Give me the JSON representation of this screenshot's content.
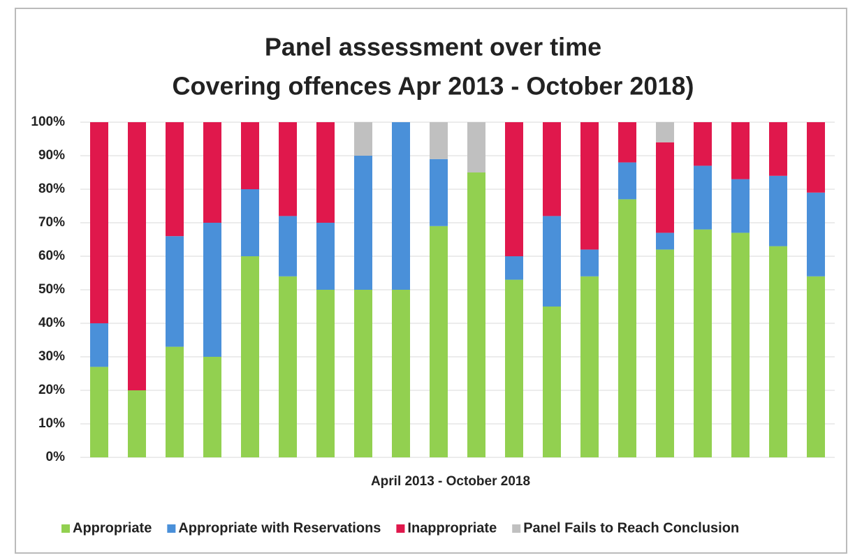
{
  "chart_data": {
    "type": "stacked_bar",
    "title": "Panel assessment over time",
    "subtitle": "Covering offences Apr 2013 - October 2018)",
    "x_label": "April 2013 - October 2018",
    "categories": [
      null,
      null,
      null,
      null,
      null,
      null,
      null,
      null,
      null,
      null,
      null,
      null,
      null,
      null,
      null,
      null,
      null,
      null,
      null,
      null
    ],
    "series": [
      {
        "name": "Appropriate",
        "color": "#92d050",
        "values": [
          27,
          20,
          33,
          30,
          60,
          54,
          50,
          50,
          50,
          69,
          85,
          53,
          45,
          54,
          77,
          62,
          68,
          67,
          63,
          54
        ]
      },
      {
        "name": "Appropriate with Reservations",
        "color": "#4a90d9",
        "values": [
          13,
          0,
          33,
          40,
          20,
          18,
          20,
          40,
          50,
          20,
          0,
          7,
          27,
          8,
          11,
          5,
          19,
          16,
          21,
          25
        ]
      },
      {
        "name": "Inappropriate",
        "color": "#e0184c",
        "values": [
          60,
          80,
          34,
          30,
          20,
          28,
          30,
          0,
          0,
          0,
          0,
          40,
          28,
          38,
          12,
          27,
          13,
          17,
          16,
          21
        ]
      },
      {
        "name": "Panel Fails to Reach Conclusion",
        "color": "#c0c0c0",
        "values": [
          0,
          0,
          0,
          0,
          0,
          0,
          0,
          10,
          0,
          11,
          15,
          0,
          0,
          0,
          0,
          6,
          0,
          0,
          0,
          0
        ]
      }
    ],
    "ylim": [
      0,
      100
    ],
    "yticks": [
      {
        "value": 0,
        "label": "0%"
      },
      {
        "value": 10,
        "label": "10%"
      },
      {
        "value": 20,
        "label": "20%"
      },
      {
        "value": 30,
        "label": "30%"
      },
      {
        "value": 40,
        "label": "40%"
      },
      {
        "value": 50,
        "label": "50%"
      },
      {
        "value": 60,
        "label": "60%"
      },
      {
        "value": 70,
        "label": "70%"
      },
      {
        "value": 80,
        "label": "80%"
      },
      {
        "value": 90,
        "label": "90%"
      },
      {
        "value": 100,
        "label": "100%"
      }
    ],
    "grid": true,
    "legend": "bottom"
  }
}
